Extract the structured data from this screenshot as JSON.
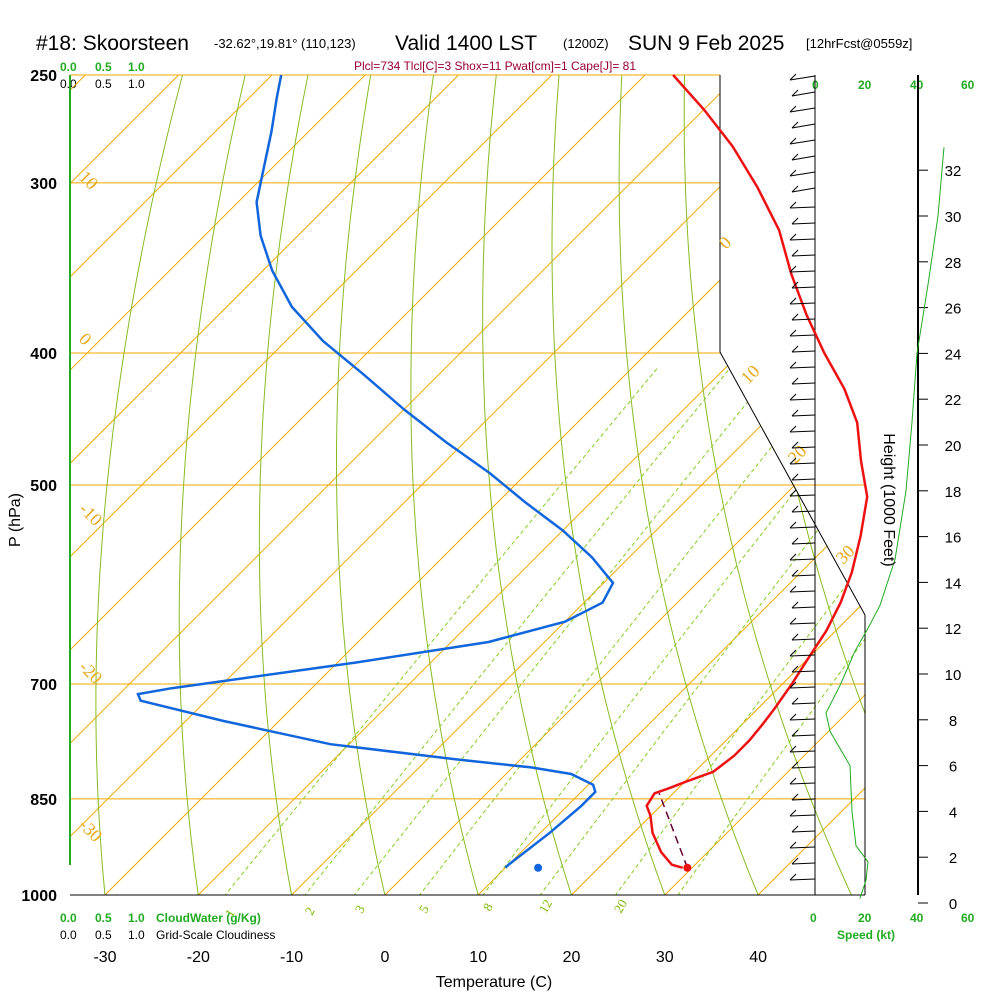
{
  "header": {
    "station": "#18: Skoorsteen",
    "coords": "-32.62°,19.81° (110,123)",
    "valid": "Valid 1400 LST",
    "utc": "(1200Z)",
    "date": "SUN 9 Feb 2025",
    "forecast": "[12hrFcst@0559z]"
  },
  "indices": "Plcl=734 Tlcl[C]=3 Shox=11 Pwat[cm]=1 Cape[J]= 81",
  "scales": {
    "cloud_water_ticks": [
      "0.0",
      "0.5",
      "1.0"
    ],
    "cloudiness_ticks": [
      "0.0",
      "0.5",
      "1.0"
    ],
    "cloud_water_label": "CloudWater (g/Kg)",
    "cloudiness_label": "Grid-Scale Cloudiness",
    "speed_ticks": [
      "0",
      "20",
      "40",
      "60"
    ],
    "speed_label": "Speed (kt)"
  },
  "colors": {
    "temperature": "#ee1111",
    "dewpoint": "#1166dd",
    "isotherm": "#f0a800",
    "dry_adiabat": "#88bb22",
    "mixing_ratio": "#88cc22",
    "parcel": "#660033",
    "wind_speed": "#22aa22"
  },
  "chart_data": {
    "type": "line",
    "title": "#18: Skoorsteen",
    "xlabel": "Temperature (C)",
    "ylabel": "P (hPa)",
    "y2label": "Height (1000 Feet)",
    "xlim": [
      -30,
      40
    ],
    "ylim_pressure": [
      1000,
      250
    ],
    "x_ticks": [
      "-30",
      "-20",
      "-10",
      "0",
      "10",
      "20",
      "30",
      "40"
    ],
    "pressure_ticks": [
      "250",
      "300",
      "400",
      "500",
      "700",
      "850",
      "1000"
    ],
    "height_ticks": [
      "0",
      "2",
      "4",
      "6",
      "8",
      "10",
      "12",
      "14",
      "16",
      "18",
      "20",
      "22",
      "24",
      "26",
      "28",
      "30",
      "32"
    ],
    "isotherm_labels": [
      "10",
      "0",
      "-10",
      "-20",
      "-30",
      "0",
      "10",
      "20",
      "30"
    ],
    "mixing_ratio_labels": [
      "1",
      "2",
      "3",
      "5",
      "8",
      "12",
      "20"
    ],
    "series": [
      {
        "name": "Temperature",
        "points": [
          [
            29.0,
            955
          ],
          [
            27.5,
            950
          ],
          [
            25,
            930
          ],
          [
            22,
            900
          ],
          [
            20,
            875
          ],
          [
            18.5,
            860
          ],
          [
            18,
            842
          ],
          [
            19,
            835
          ],
          [
            20.2,
            825
          ],
          [
            22,
            812
          ],
          [
            22.5,
            790
          ],
          [
            22.5,
            770
          ],
          [
            22.2,
            750
          ],
          [
            21.8,
            730
          ],
          [
            21,
            700
          ],
          [
            20,
            670
          ],
          [
            19,
            640
          ],
          [
            17.5,
            610
          ],
          [
            15.5,
            580
          ],
          [
            12.5,
            545
          ],
          [
            9,
            510
          ],
          [
            4.5,
            480
          ],
          [
            0,
            450
          ],
          [
            -5,
            425
          ],
          [
            -11,
            400
          ],
          [
            -17,
            375
          ],
          [
            -23,
            350
          ],
          [
            -29,
            325
          ],
          [
            -36,
            302
          ],
          [
            -43,
            282
          ],
          [
            -50,
            265
          ],
          [
            -57,
            250
          ]
        ]
      },
      {
        "name": "Dewpoint",
        "points": [
          [
            13.5,
            955
          ]
        ]
      },
      {
        "name": "Dewpoint profile",
        "points": [
          [
            10,
            955
          ],
          [
            10,
            950
          ],
          [
            11,
            900
          ],
          [
            11.5,
            860
          ],
          [
            11.5,
            840
          ],
          [
            10.5,
            830
          ],
          [
            7,
            815
          ],
          [
            2,
            806
          ],
          [
            -7,
            795
          ],
          [
            -22,
            775
          ],
          [
            -36,
            745
          ],
          [
            -47,
            720
          ],
          [
            -48,
            712
          ],
          [
            -45,
            705
          ],
          [
            -28,
            675
          ],
          [
            -16,
            652
          ],
          [
            -10,
            630
          ],
          [
            -8,
            610
          ],
          [
            -9,
            590
          ],
          [
            -14,
            565
          ],
          [
            -20,
            540
          ],
          [
            -27,
            515
          ],
          [
            -34,
            490
          ],
          [
            -42,
            465
          ],
          [
            -50,
            440
          ],
          [
            -58,
            415
          ],
          [
            -66,
            392
          ],
          [
            -73,
            370
          ],
          [
            -79,
            348
          ],
          [
            -84,
            328
          ],
          [
            -88,
            310
          ],
          [
            -91,
            292
          ],
          [
            -94,
            275
          ],
          [
            -97,
            260
          ],
          [
            -99,
            250
          ]
        ]
      },
      {
        "name": "Parcel",
        "points": [
          [
            29.5,
            955
          ],
          [
            18.5,
            842
          ]
        ]
      }
    ],
    "surface": {
      "temperature": 29.5,
      "dewpoint": 13.5,
      "pressure": 955
    }
  }
}
